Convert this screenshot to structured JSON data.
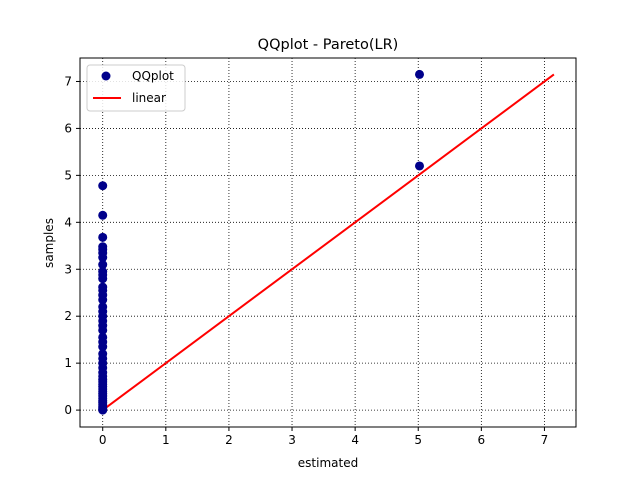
{
  "chart_data": {
    "type": "scatter",
    "title": "QQplot - Pareto(LR)",
    "xlabel": "estimated",
    "ylabel": "samples",
    "xlim": [
      -0.36,
      7.5
    ],
    "ylim": [
      -0.36,
      7.5
    ],
    "xticks": [
      0,
      1,
      2,
      3,
      4,
      5,
      6,
      7
    ],
    "yticks": [
      0,
      1,
      2,
      3,
      4,
      5,
      6,
      7
    ],
    "grid": true,
    "grid_style": "dotted",
    "legend_position": "top-left",
    "series": [
      {
        "name": "QQplot",
        "kind": "scatter",
        "color": "#00008b",
        "points": [
          [
            0.0,
            0.0
          ],
          [
            0.0,
            0.02
          ],
          [
            0.0,
            0.05
          ],
          [
            0.0,
            0.08
          ],
          [
            0.0,
            0.12
          ],
          [
            0.0,
            0.16
          ],
          [
            0.0,
            0.2
          ],
          [
            0.0,
            0.25
          ],
          [
            0.0,
            0.3
          ],
          [
            0.0,
            0.35
          ],
          [
            0.0,
            0.4
          ],
          [
            0.0,
            0.45
          ],
          [
            0.0,
            0.5
          ],
          [
            0.0,
            0.55
          ],
          [
            0.0,
            0.6
          ],
          [
            0.0,
            0.65
          ],
          [
            0.0,
            0.72
          ],
          [
            0.0,
            0.8
          ],
          [
            0.0,
            0.9
          ],
          [
            0.0,
            1.0
          ],
          [
            0.0,
            1.1
          ],
          [
            0.0,
            1.2
          ],
          [
            0.0,
            1.35
          ],
          [
            0.0,
            1.45
          ],
          [
            0.0,
            1.55
          ],
          [
            0.0,
            1.7
          ],
          [
            0.0,
            1.8
          ],
          [
            0.0,
            1.9
          ],
          [
            0.0,
            2.0
          ],
          [
            0.0,
            2.1
          ],
          [
            0.0,
            2.2
          ],
          [
            0.0,
            2.35
          ],
          [
            0.0,
            2.45
          ],
          [
            0.0,
            2.55
          ],
          [
            0.0,
            2.62
          ],
          [
            0.0,
            2.8
          ],
          [
            0.0,
            2.88
          ],
          [
            0.0,
            2.95
          ],
          [
            0.0,
            3.1
          ],
          [
            0.0,
            3.25
          ],
          [
            0.0,
            3.35
          ],
          [
            0.0,
            3.42
          ],
          [
            0.0,
            3.48
          ],
          [
            0.0,
            3.68
          ],
          [
            0.0,
            4.15
          ],
          [
            0.0,
            4.78
          ],
          [
            5.02,
            5.2
          ],
          [
            5.02,
            7.15
          ]
        ]
      },
      {
        "name": "linear",
        "kind": "line",
        "color": "#ff0000",
        "points": [
          [
            0.0,
            0.0
          ],
          [
            7.15,
            7.15
          ]
        ]
      }
    ]
  }
}
